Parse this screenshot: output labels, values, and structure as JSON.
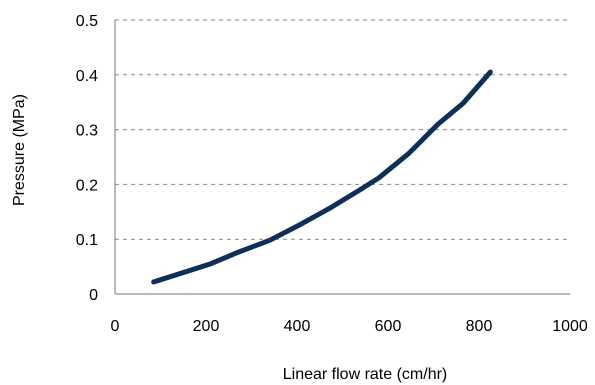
{
  "chart_data": {
    "type": "line",
    "title": "",
    "xlabel": "Linear flow rate (cm/hr)",
    "ylabel": "Pressure (MPa)",
    "xlim": [
      0,
      1000
    ],
    "ylim": [
      0,
      0.5
    ],
    "x_ticks": [
      0,
      200,
      400,
      600,
      800,
      1000
    ],
    "y_ticks": [
      0,
      0.1,
      0.2,
      0.3,
      0.4,
      0.5
    ],
    "x_tick_labels": [
      "0",
      "200",
      "400",
      "600",
      "800",
      "1000"
    ],
    "y_tick_labels": [
      "0",
      "0.1",
      "0.2",
      "0.3",
      "0.4",
      "0.5"
    ],
    "grid": "horizontal dashed",
    "legend": "none",
    "series": [
      {
        "color": "#0e2f57",
        "x": [
          85,
          210,
          270,
          340,
          410,
          475,
          540,
          580,
          645,
          710,
          765,
          825
        ],
        "y": [
          0.022,
          0.055,
          0.076,
          0.098,
          0.128,
          0.158,
          0.191,
          0.212,
          0.256,
          0.31,
          0.348,
          0.405
        ]
      }
    ]
  }
}
